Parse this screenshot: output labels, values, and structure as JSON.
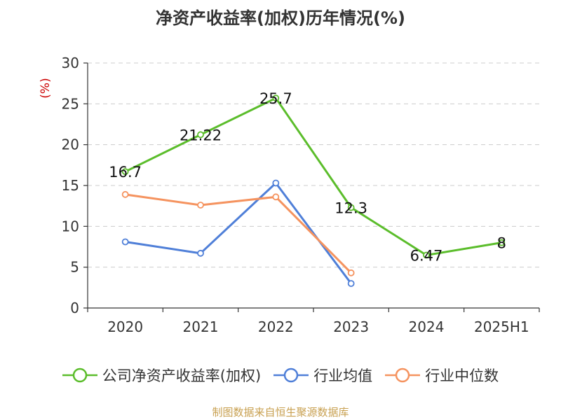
{
  "chart_data": {
    "type": "line",
    "title": "净资产收益率(加权)历年情况(%)",
    "ylabel": "(%)",
    "categories": [
      "2020",
      "2021",
      "2022",
      "2023",
      "2024",
      "2025H1"
    ],
    "ylim": [
      0,
      30
    ],
    "yticks": [
      0,
      5,
      10,
      15,
      20,
      25,
      30
    ],
    "grid": true,
    "legend_position": "bottom",
    "series": [
      {
        "name": "公司净资产收益率(加权)",
        "color": "#5bbd2b",
        "values": [
          16.7,
          21.22,
          25.7,
          12.3,
          6.47,
          8
        ],
        "labels": [
          "16.7",
          "21.22",
          "25.7",
          "12.3",
          "6.47",
          "8"
        ]
      },
      {
        "name": "行业均值",
        "color": "#4f7fd8",
        "values": [
          8.1,
          6.7,
          15.3,
          3.0,
          null,
          null
        ]
      },
      {
        "name": "行业中位数",
        "color": "#f5935f",
        "values": [
          13.9,
          12.6,
          13.6,
          4.3,
          null,
          null
        ]
      }
    ]
  },
  "source": "制图数据来自恒生聚源数据库"
}
